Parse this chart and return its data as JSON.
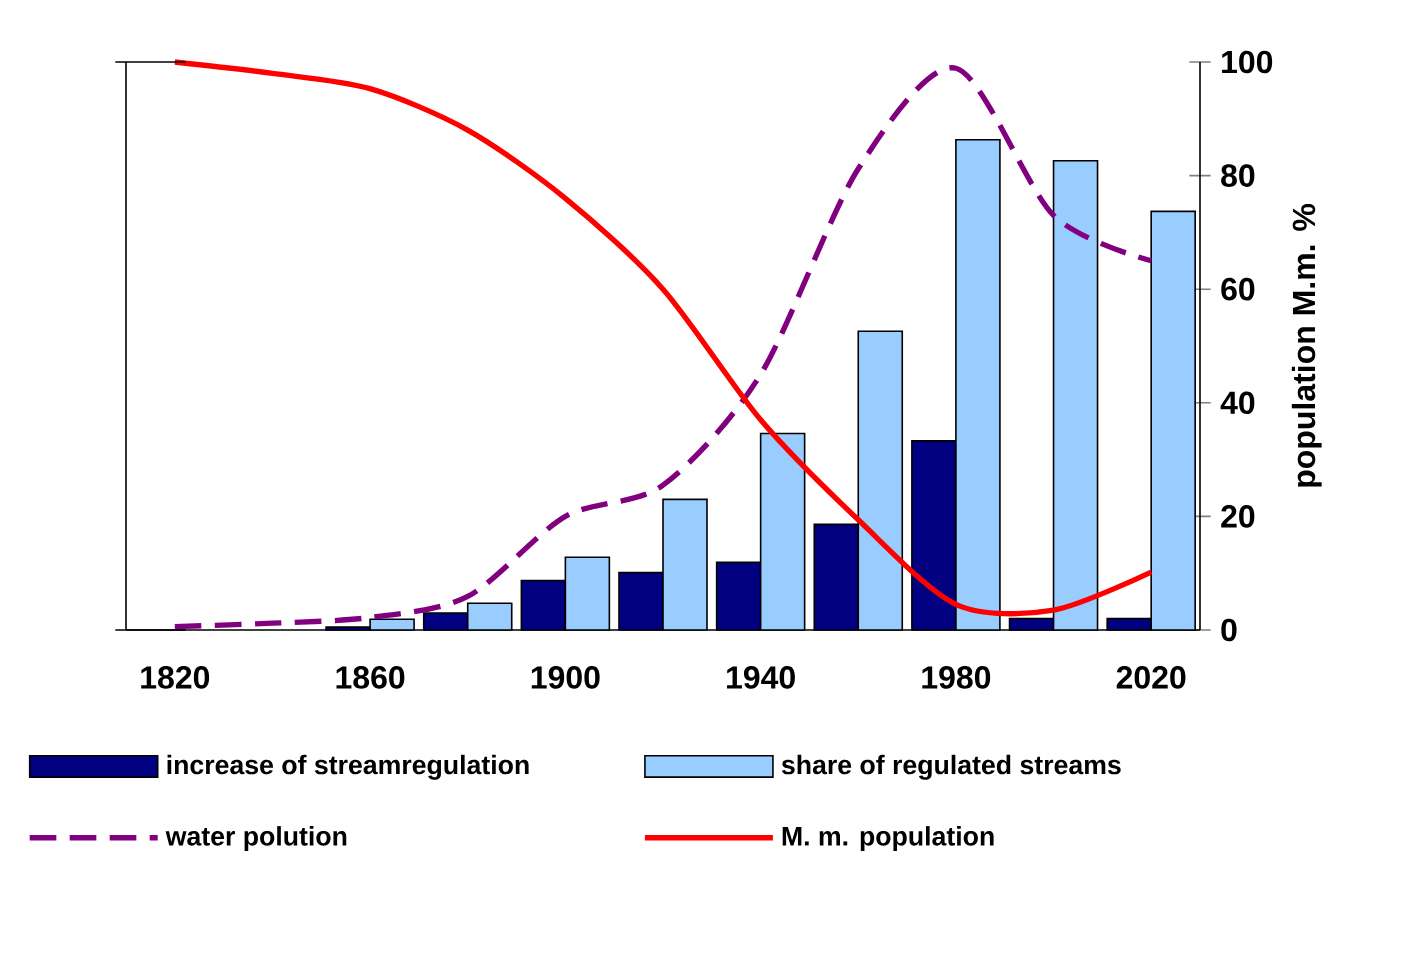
{
  "chart_data": {
    "type": "bar",
    "ylabel": "population M.m. %",
    "categories": [
      "1820",
      null,
      "1860",
      null,
      "1900",
      null,
      "1940",
      null,
      "1980",
      null,
      "2020"
    ],
    "ylim": [
      0,
      100
    ],
    "yticks": [
      0,
      20,
      40,
      60,
      80,
      100
    ],
    "legend": "bottom",
    "series": [
      {
        "name": "increase of streamregulation",
        "color": "#000080",
        "values": [
          null,
          null,
          0.5,
          3.0,
          8.7,
          10.1,
          11.9,
          18.6,
          33.3,
          2.0,
          2.0
        ]
      },
      {
        "name": "share of regulated streams",
        "color": "#99ccff",
        "values": [
          null,
          null,
          1.9,
          4.7,
          12.8,
          23.0,
          34.6,
          52.6,
          86.3,
          82.6,
          73.7
        ]
      },
      {
        "name": "water polution",
        "type": "line",
        "line_style": "dashed",
        "color": "#800080",
        "values": [
          0.6,
          1.2,
          2.2,
          5.9,
          20,
          25.5,
          45,
          81.2,
          98.9,
          73,
          65
        ]
      },
      {
        "name": "M. m. population",
        "type": "line",
        "line_style": "solid",
        "color": "#ff0000",
        "values": [
          100,
          98,
          95.3,
          88,
          76,
          60,
          37,
          19.4,
          4.5,
          3.5,
          10.2
        ]
      }
    ]
  }
}
